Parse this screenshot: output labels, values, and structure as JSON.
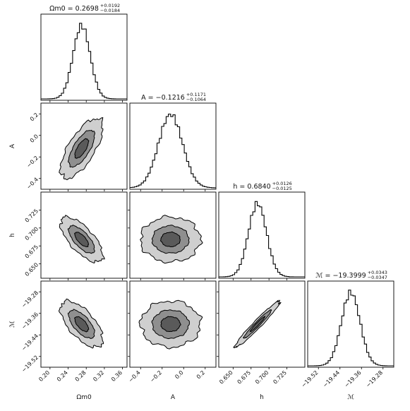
{
  "chart_data": {
    "type": "corner",
    "parameters": [
      {
        "id": "om",
        "label": "Ωm0",
        "axis_label": "Ωm0",
        "title": "Ωm0 = 0.2698",
        "title_value": "Ωm0 = 0.2698",
        "err_plus": "+0.0192",
        "err_minus": "−0.0184",
        "mean": 0.2698,
        "sigma": 0.0188,
        "range": [
          0.18,
          0.37
        ],
        "ticks": [
          "0.20",
          "0.24",
          "0.28",
          "0.32",
          "0.36"
        ]
      },
      {
        "id": "A",
        "label": "A",
        "axis_label": "A",
        "title": "A = −0.1216",
        "title_value": "A = −0.1216",
        "err_plus": "+0.1171",
        "err_minus": "−0.1064",
        "mean": -0.1216,
        "sigma": 0.112,
        "range": [
          -0.5,
          0.3
        ],
        "ticks": [
          "−0.4",
          "−0.2",
          "0.0",
          "0.2"
        ]
      },
      {
        "id": "h",
        "label": "h",
        "axis_label": "h",
        "title": "h = 0.6840",
        "title_value": "h = 0.6840",
        "err_plus": "+0.0126",
        "err_minus": "−0.0125",
        "mean": 0.684,
        "sigma": 0.0126,
        "range": [
          0.63,
          0.75
        ],
        "ticks": [
          "0.650",
          "0.675",
          "0.700",
          "0.725"
        ]
      },
      {
        "id": "M",
        "label": "ℳ",
        "axis_label": "ℳ",
        "title": "ℳ = −19.3999",
        "title_value": "ℳ = −19.3999",
        "err_plus": "+0.0343",
        "err_minus": "−0.0347",
        "mean": -19.3999,
        "sigma": 0.0345,
        "range": [
          -19.56,
          -19.24
        ],
        "ticks": [
          "−19.52",
          "−19.44",
          "−19.36",
          "−19.28"
        ]
      }
    ],
    "correlations": {
      "om_A": 0.7,
      "om_h": -0.7,
      "om_M": -0.65,
      "A_h": 0.0,
      "A_M": 0.0,
      "h_M": 0.97
    },
    "contour_levels_sigma": [
      1,
      2,
      3
    ],
    "contour_fills": [
      "#5a5a5a",
      "#8f8f8f",
      "#cfcfcf"
    ],
    "histogram_style": "step",
    "grid": false
  }
}
